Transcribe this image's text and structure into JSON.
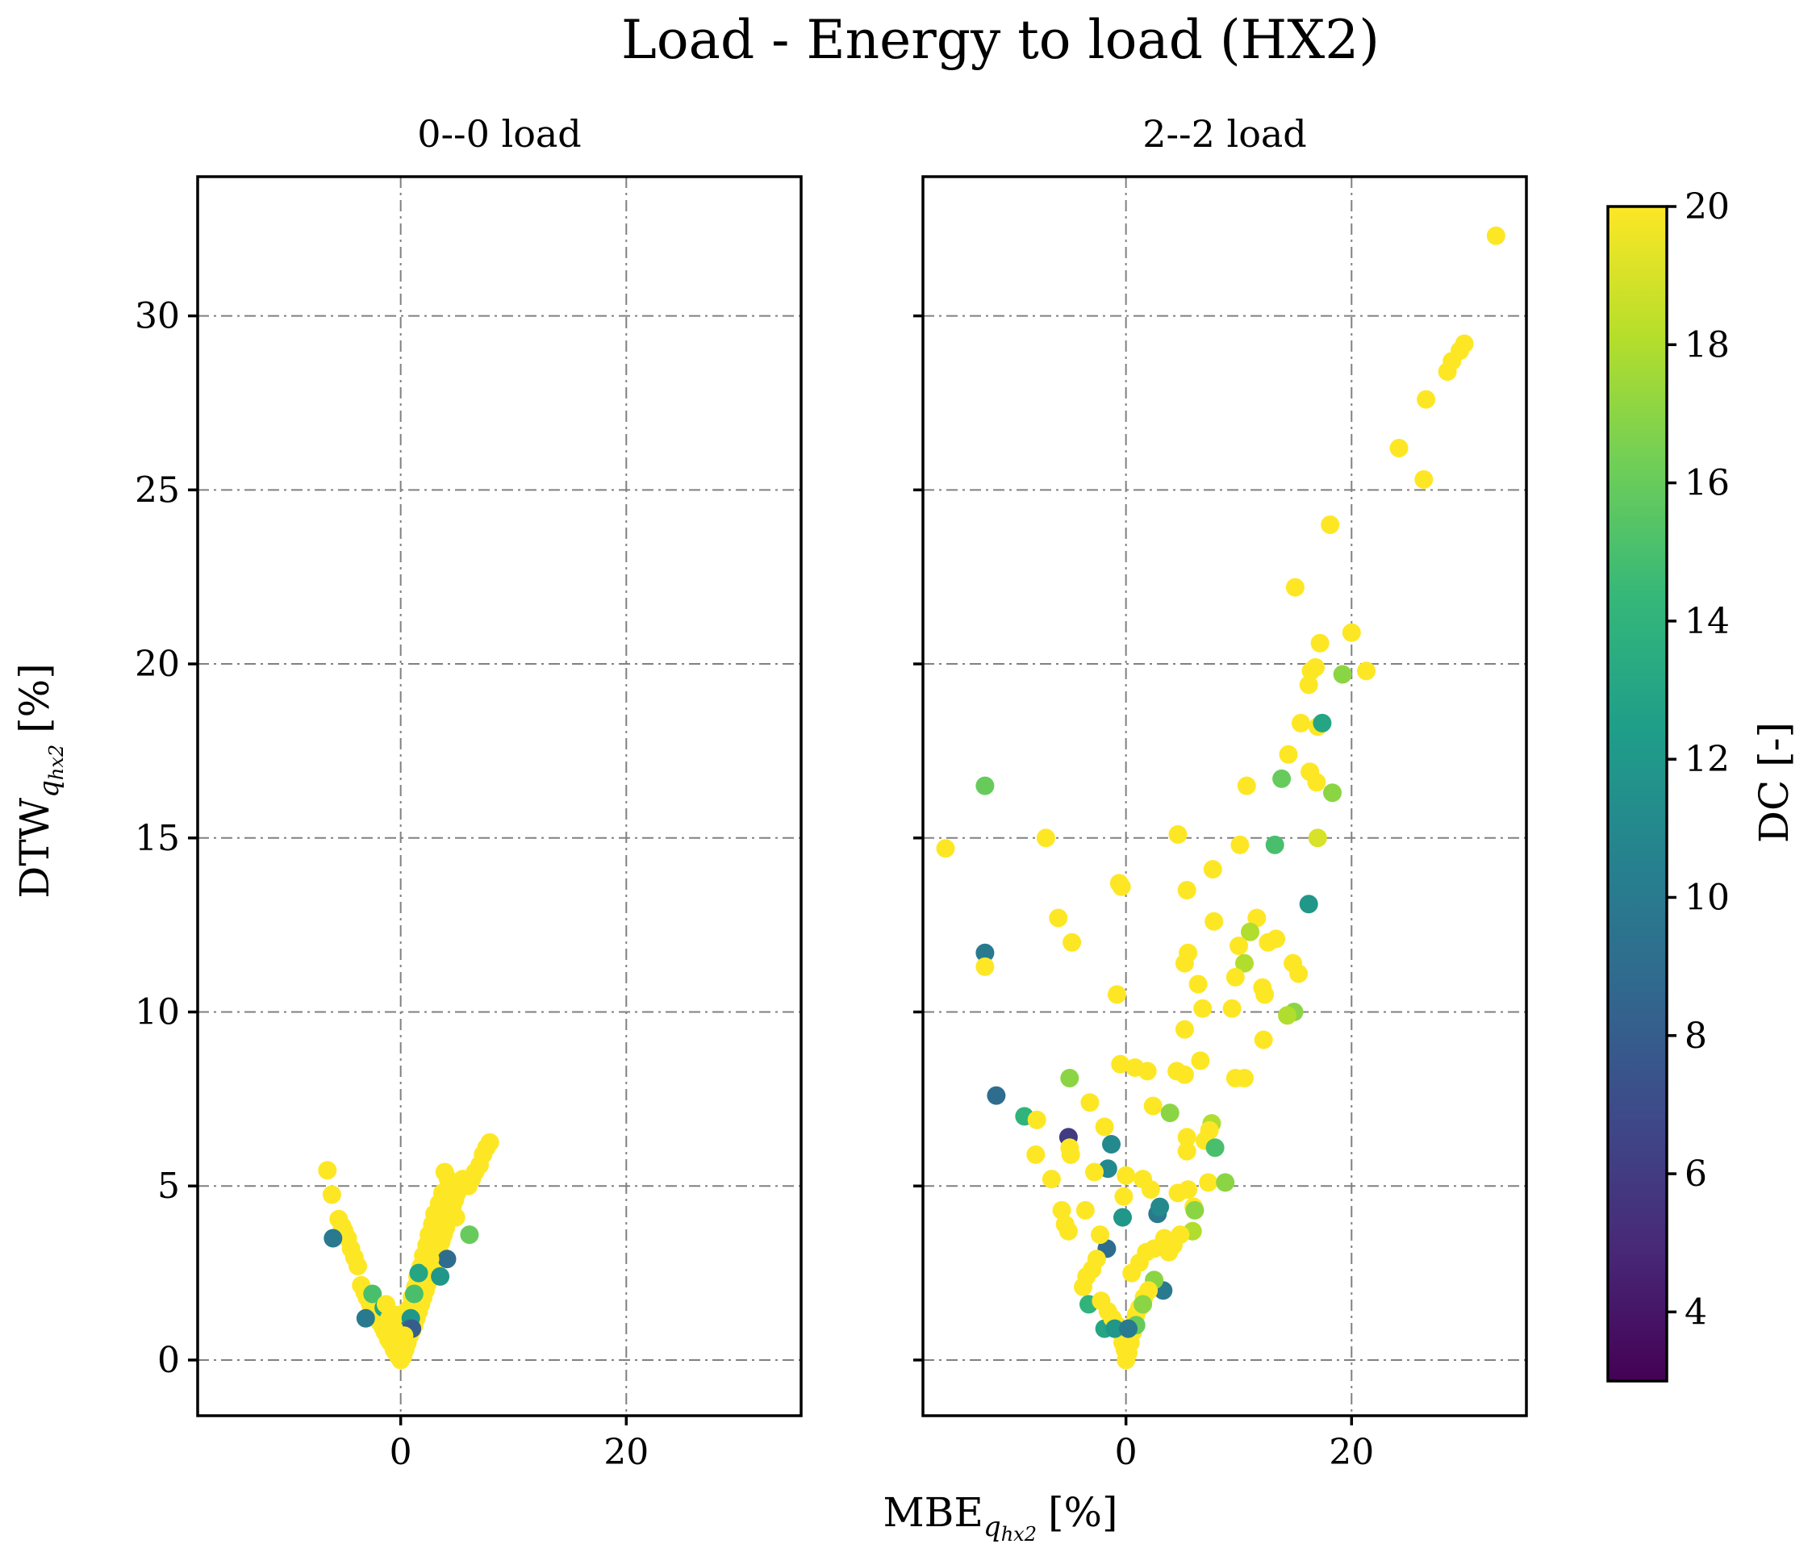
{
  "chart_data": {
    "type": "scatter",
    "title": "Load - Energy to load (HX2)",
    "xlabel": "MBE",
    "xlabel_sub": "q",
    "xlabel_subsub": "hx2",
    "xlabel_unit": "[%]",
    "ylabel": "DTW",
    "ylabel_sub": "q",
    "ylabel_subsub": "hx2",
    "ylabel_unit": "[%]",
    "xlim": [
      -18,
      35.5
    ],
    "ylim": [
      -1.6,
      34
    ],
    "xticks": [
      0,
      20
    ],
    "yticks": [
      0,
      5,
      10,
      15,
      20,
      25,
      30
    ],
    "grid": true,
    "colorbar": {
      "label": "DC [-]",
      "min": 3,
      "max": 20,
      "ticks": [
        4,
        6,
        8,
        10,
        12,
        14,
        16,
        18,
        20
      ],
      "colormap": "viridis",
      "colors": [
        "#440154",
        "#482878",
        "#3e4989",
        "#31688e",
        "#26828e",
        "#1f9e89",
        "#35b779",
        "#6ece58",
        "#b5de2b",
        "#fde725"
      ]
    },
    "panels": [
      {
        "title": "0--0 load",
        "points": [
          [
            -6.5,
            5.45,
            20
          ],
          [
            -6.1,
            4.75,
            20
          ],
          [
            -5.5,
            4.05,
            20
          ],
          [
            -5.2,
            3.85,
            20
          ],
          [
            -5.0,
            3.7,
            20
          ],
          [
            -4.7,
            3.5,
            20
          ],
          [
            -4.4,
            3.2,
            20
          ],
          [
            -4.1,
            2.95,
            20
          ],
          [
            -3.8,
            2.7,
            20
          ],
          [
            -6.0,
            3.5,
            10
          ],
          [
            -3.5,
            2.15,
            20
          ],
          [
            -3.2,
            1.95,
            20
          ],
          [
            -3.0,
            1.8,
            20
          ],
          [
            -2.7,
            1.6,
            20
          ],
          [
            -2.4,
            1.4,
            20
          ],
          [
            -2.1,
            1.25,
            20
          ],
          [
            -1.9,
            1.1,
            20
          ],
          [
            -1.6,
            0.95,
            20
          ],
          [
            -1.4,
            0.8,
            20
          ],
          [
            -1.1,
            0.6,
            20
          ],
          [
            -0.9,
            0.5,
            20
          ],
          [
            -0.6,
            0.3,
            20
          ],
          [
            -0.4,
            0.2,
            20
          ],
          [
            -0.2,
            0.1,
            20
          ],
          [
            0.0,
            0.0,
            20
          ],
          [
            -3.1,
            1.2,
            10
          ],
          [
            -2.5,
            1.9,
            15
          ],
          [
            -1.5,
            1.5,
            13
          ],
          [
            -0.5,
            1.3,
            20
          ],
          [
            -0.3,
            1.0,
            20
          ],
          [
            0.2,
            0.1,
            20
          ],
          [
            0.4,
            0.3,
            20
          ],
          [
            0.6,
            0.5,
            20
          ],
          [
            0.8,
            0.7,
            20
          ],
          [
            1.0,
            0.85,
            20
          ],
          [
            1.2,
            1.0,
            20
          ],
          [
            1.4,
            1.2,
            20
          ],
          [
            1.6,
            1.4,
            20
          ],
          [
            1.8,
            1.6,
            20
          ],
          [
            2.0,
            1.8,
            20
          ],
          [
            2.2,
            2.0,
            20
          ],
          [
            2.4,
            2.2,
            20
          ],
          [
            2.6,
            2.4,
            20
          ],
          [
            2.8,
            2.6,
            20
          ],
          [
            3.0,
            2.8,
            20
          ],
          [
            3.2,
            3.0,
            20
          ],
          [
            3.4,
            3.2,
            20
          ],
          [
            3.6,
            3.4,
            20
          ],
          [
            3.8,
            3.6,
            20
          ],
          [
            4.0,
            3.8,
            20
          ],
          [
            4.2,
            4.0,
            20
          ],
          [
            4.4,
            4.2,
            20
          ],
          [
            4.6,
            4.4,
            20
          ],
          [
            4.8,
            4.6,
            20
          ],
          [
            5.0,
            4.8,
            20
          ],
          [
            5.2,
            5.0,
            20
          ],
          [
            5.5,
            5.2,
            20
          ],
          [
            3.9,
            5.4,
            20
          ],
          [
            4.2,
            5.2,
            20
          ],
          [
            4.5,
            5.0,
            20
          ],
          [
            3.7,
            4.8,
            20
          ],
          [
            3.4,
            4.5,
            20
          ],
          [
            3.0,
            4.2,
            20
          ],
          [
            2.8,
            3.9,
            20
          ],
          [
            2.5,
            3.6,
            20
          ],
          [
            2.3,
            3.3,
            20
          ],
          [
            2.0,
            3.0,
            20
          ],
          [
            1.8,
            2.7,
            20
          ],
          [
            1.5,
            2.4,
            20
          ],
          [
            1.3,
            2.1,
            20
          ],
          [
            1.0,
            1.8,
            20
          ],
          [
            0.8,
            1.5,
            20
          ],
          [
            0.6,
            1.2,
            20
          ],
          [
            0.4,
            0.9,
            20
          ],
          [
            0.5,
            1.4,
            20
          ],
          [
            6.0,
            5.0,
            20
          ],
          [
            6.3,
            5.2,
            20
          ],
          [
            6.6,
            5.4,
            20
          ],
          [
            7.0,
            5.6,
            20
          ],
          [
            7.3,
            5.9,
            20
          ],
          [
            7.6,
            6.1,
            20
          ],
          [
            7.9,
            6.25,
            20
          ],
          [
            6.1,
            3.6,
            16
          ],
          [
            4.1,
            2.9,
            9
          ],
          [
            3.5,
            2.4,
            12
          ],
          [
            1.6,
            2.5,
            13
          ],
          [
            1.2,
            1.9,
            15
          ],
          [
            0.9,
            1.2,
            12
          ],
          [
            0.7,
            0.9,
            10
          ],
          [
            1.0,
            0.9,
            8
          ],
          [
            -0.8,
            0.6,
            20
          ],
          [
            -0.6,
            0.9,
            20
          ],
          [
            -1.0,
            1.2,
            20
          ],
          [
            -1.3,
            1.6,
            20
          ],
          [
            -0.2,
            0.5,
            20
          ],
          [
            0.1,
            0.4,
            20
          ],
          [
            0.3,
            0.7,
            20
          ],
          [
            2.6,
            2.9,
            20
          ],
          [
            3.3,
            3.7,
            20
          ],
          [
            4.9,
            4.1,
            20
          ]
        ]
      },
      {
        "title": "2--2 load",
        "points": [
          [
            32.8,
            32.3,
            20
          ],
          [
            30.0,
            29.2,
            20
          ],
          [
            29.6,
            29.0,
            20
          ],
          [
            28.9,
            28.7,
            20
          ],
          [
            28.5,
            28.4,
            20
          ],
          [
            26.6,
            27.6,
            20
          ],
          [
            24.2,
            26.2,
            20
          ],
          [
            26.4,
            25.3,
            20
          ],
          [
            18.1,
            24.0,
            20
          ],
          [
            15.0,
            22.2,
            20
          ],
          [
            20.0,
            20.9,
            20
          ],
          [
            17.2,
            20.6,
            20
          ],
          [
            16.8,
            19.9,
            20
          ],
          [
            16.4,
            19.8,
            20
          ],
          [
            19.2,
            19.7,
            17
          ],
          [
            21.3,
            19.8,
            20
          ],
          [
            16.2,
            19.4,
            20
          ],
          [
            15.5,
            18.3,
            20
          ],
          [
            17.0,
            18.2,
            20
          ],
          [
            17.4,
            18.3,
            13
          ],
          [
            14.4,
            17.4,
            20
          ],
          [
            16.3,
            16.9,
            20
          ],
          [
            16.9,
            16.6,
            20
          ],
          [
            13.8,
            16.7,
            16
          ],
          [
            18.3,
            16.3,
            17
          ],
          [
            10.7,
            16.5,
            20
          ],
          [
            17.0,
            15.0,
            19
          ],
          [
            13.2,
            14.8,
            15
          ],
          [
            10.1,
            14.8,
            20
          ],
          [
            4.6,
            15.1,
            20
          ],
          [
            16.2,
            13.1,
            12
          ],
          [
            7.7,
            14.1,
            20
          ],
          [
            5.4,
            13.5,
            20
          ],
          [
            -0.6,
            13.7,
            20
          ],
          [
            -0.4,
            13.6,
            20
          ],
          [
            11.6,
            12.7,
            20
          ],
          [
            7.8,
            12.6,
            20
          ],
          [
            11.0,
            12.3,
            18
          ],
          [
            13.3,
            12.1,
            20
          ],
          [
            12.6,
            12.0,
            20
          ],
          [
            10.0,
            11.9,
            20
          ],
          [
            14.8,
            11.4,
            20
          ],
          [
            10.5,
            11.4,
            18
          ],
          [
            5.5,
            11.7,
            20
          ],
          [
            5.2,
            11.4,
            20
          ],
          [
            15.3,
            11.1,
            20
          ],
          [
            9.7,
            11.0,
            20
          ],
          [
            12.1,
            10.7,
            20
          ],
          [
            12.3,
            10.5,
            20
          ],
          [
            6.4,
            10.8,
            20
          ],
          [
            -0.8,
            10.5,
            20
          ],
          [
            9.4,
            10.1,
            20
          ],
          [
            6.8,
            10.1,
            20
          ],
          [
            14.9,
            10.0,
            17
          ],
          [
            14.3,
            9.9,
            18
          ],
          [
            5.2,
            9.5,
            20
          ],
          [
            12.2,
            9.2,
            20
          ],
          [
            10.5,
            8.1,
            20
          ],
          [
            9.7,
            8.1,
            20
          ],
          [
            6.6,
            8.6,
            20
          ],
          [
            -0.5,
            8.5,
            20
          ],
          [
            0.8,
            8.4,
            20
          ],
          [
            1.9,
            8.3,
            20
          ],
          [
            4.5,
            8.3,
            20
          ],
          [
            5.2,
            8.2,
            20
          ],
          [
            -5.0,
            8.1,
            17
          ],
          [
            -3.2,
            7.4,
            20
          ],
          [
            -11.5,
            7.6,
            9
          ],
          [
            -9.0,
            7.0,
            14
          ],
          [
            -7.9,
            6.9,
            20
          ],
          [
            -1.9,
            6.7,
            20
          ],
          [
            2.4,
            7.3,
            20
          ],
          [
            3.9,
            7.1,
            17
          ],
          [
            7.6,
            6.8,
            18
          ],
          [
            7.4,
            6.6,
            20
          ],
          [
            -5.1,
            6.4,
            6
          ],
          [
            -5.0,
            6.1,
            20
          ],
          [
            -4.9,
            5.9,
            20
          ],
          [
            -8.0,
            5.9,
            20
          ],
          [
            -1.3,
            6.2,
            11
          ],
          [
            5.4,
            6.4,
            20
          ],
          [
            5.4,
            6.0,
            20
          ],
          [
            7.0,
            6.3,
            20
          ],
          [
            7.9,
            6.1,
            15
          ],
          [
            -1.6,
            5.5,
            11
          ],
          [
            -2.8,
            5.4,
            20
          ],
          [
            -6.6,
            5.2,
            20
          ],
          [
            0.0,
            5.3,
            20
          ],
          [
            1.5,
            5.2,
            20
          ],
          [
            2.2,
            4.9,
            20
          ],
          [
            7.3,
            5.1,
            20
          ],
          [
            8.8,
            5.1,
            17
          ],
          [
            4.6,
            4.8,
            20
          ],
          [
            5.5,
            4.9,
            20
          ],
          [
            6.0,
            4.4,
            20
          ],
          [
            -0.2,
            4.7,
            20
          ],
          [
            -0.3,
            4.1,
            12
          ],
          [
            -5.7,
            4.3,
            20
          ],
          [
            -5.4,
            3.9,
            20
          ],
          [
            -5.1,
            3.7,
            20
          ],
          [
            -3.6,
            4.3,
            20
          ],
          [
            2.8,
            4.2,
            10
          ],
          [
            3.0,
            4.4,
            11
          ],
          [
            6.1,
            4.3,
            17
          ],
          [
            5.9,
            3.7,
            18
          ],
          [
            4.2,
            3.3,
            20
          ],
          [
            3.8,
            3.1,
            20
          ],
          [
            4.8,
            3.6,
            20
          ],
          [
            3.4,
            3.5,
            20
          ],
          [
            -1.7,
            3.2,
            9
          ],
          [
            -2.3,
            3.6,
            20
          ],
          [
            -2.6,
            2.9,
            20
          ],
          [
            -3.0,
            2.6,
            20
          ],
          [
            -3.5,
            2.4,
            20
          ],
          [
            -3.8,
            2.1,
            20
          ],
          [
            2.5,
            3.2,
            20
          ],
          [
            1.8,
            3.1,
            20
          ],
          [
            1.2,
            2.8,
            20
          ],
          [
            0.5,
            2.5,
            20
          ],
          [
            3.3,
            2.0,
            10
          ],
          [
            2.5,
            2.3,
            17
          ],
          [
            2.0,
            2.0,
            20
          ],
          [
            1.6,
            1.8,
            20
          ],
          [
            1.2,
            1.5,
            20
          ],
          [
            0.9,
            1.3,
            20
          ],
          [
            -3.3,
            1.6,
            14
          ],
          [
            -1.9,
            0.9,
            13
          ],
          [
            -2.2,
            1.7,
            20
          ],
          [
            -1.6,
            1.4,
            20
          ],
          [
            -1.2,
            1.2,
            20
          ],
          [
            -0.8,
            1.0,
            20
          ],
          [
            -0.5,
            0.8,
            20
          ],
          [
            -0.3,
            0.5,
            20
          ],
          [
            -0.1,
            0.3,
            20
          ],
          [
            0.0,
            0.0,
            20
          ],
          [
            0.2,
            0.2,
            20
          ],
          [
            0.4,
            0.5,
            20
          ],
          [
            0.6,
            0.8,
            20
          ],
          [
            0.8,
            1.1,
            20
          ],
          [
            1.5,
            1.6,
            17
          ],
          [
            -12.5,
            16.5,
            16
          ],
          [
            -12.5,
            11.7,
            10
          ],
          [
            -12.5,
            11.3,
            20
          ],
          [
            -16.0,
            14.7,
            20
          ],
          [
            -7.1,
            15.0,
            20
          ],
          [
            -6.0,
            12.7,
            20
          ],
          [
            -4.8,
            12.0,
            20
          ],
          [
            0.9,
            1.0,
            16
          ],
          [
            -1.0,
            0.9,
            12
          ],
          [
            0.2,
            0.9,
            10
          ]
        ]
      }
    ]
  }
}
